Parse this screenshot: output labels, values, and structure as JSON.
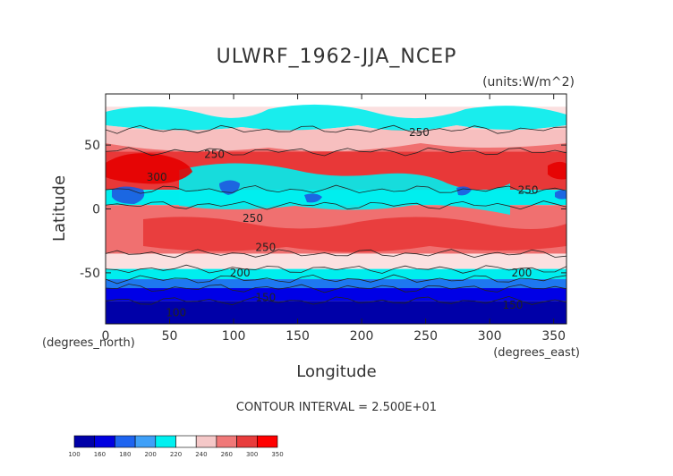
{
  "chart_data": {
    "type": "heatmap",
    "title": "ULWRF_1962-JJA_NCEP",
    "units": "(units:W/m^2)",
    "xlabel": "Longitude",
    "ylabel": "Latitude",
    "x_unit_note": "(degrees_east)",
    "y_unit_note": "(degrees_north)",
    "xlim": [
      0,
      360
    ],
    "ylim": [
      -90,
      90
    ],
    "xticks": [
      0,
      50,
      100,
      150,
      200,
      250,
      300,
      350
    ],
    "yticks": [
      50,
      0,
      -50
    ],
    "contour_interval_text": "CONTOUR INTERVAL = 2.500E+01",
    "contour_labels": [
      {
        "text": "250",
        "lon": 245,
        "lat": 57
      },
      {
        "text": "250",
        "lon": 85,
        "lat": 40
      },
      {
        "text": "300",
        "lon": 40,
        "lat": 22
      },
      {
        "text": "250",
        "lon": 330,
        "lat": 12
      },
      {
        "text": "250",
        "lon": 115,
        "lat": -10
      },
      {
        "text": "250",
        "lon": 125,
        "lat": -33
      },
      {
        "text": "200",
        "lon": 105,
        "lat": -53
      },
      {
        "text": "200",
        "lon": 325,
        "lat": -53
      },
      {
        "text": "150",
        "lon": 125,
        "lat": -72
      },
      {
        "text": "100",
        "lon": 55,
        "lat": -84
      },
      {
        "text": "150",
        "lon": 318,
        "lat": -78
      }
    ],
    "colorbar": {
      "ticks": [
        "100",
        "160",
        "180",
        "200",
        "220",
        "240",
        "260",
        "300",
        "350"
      ],
      "colors": [
        "#0000a8",
        "#0000e0",
        "#1e64f0",
        "#3fa0f8",
        "#00f0f0",
        "#ffffff",
        "#f5c8c8",
        "#f07878",
        "#e83c3c",
        "#ff0000"
      ]
    },
    "bands_by_latitude": [
      {
        "lat_from": 90,
        "lat_to": 80,
        "level": "240-260"
      },
      {
        "lat_from": 80,
        "lat_to": 62,
        "level": "220-240"
      },
      {
        "lat_from": 62,
        "lat_to": 45,
        "level": "260-300"
      },
      {
        "lat_from": 45,
        "lat_to": 15,
        "level": "300-350"
      },
      {
        "lat_from": 15,
        "lat_to": 3,
        "level": "200-220"
      },
      {
        "lat_from": 3,
        "lat_to": -35,
        "level": "260-300"
      },
      {
        "lat_from": -35,
        "lat_to": -47,
        "level": "220-240"
      },
      {
        "lat_from": -47,
        "lat_to": -55,
        "level": "200-220"
      },
      {
        "lat_from": -55,
        "lat_to": -62,
        "level": "180-200"
      },
      {
        "lat_from": -62,
        "lat_to": -72,
        "level": "160-180"
      },
      {
        "lat_from": -72,
        "lat_to": -90,
        "level": "100-160"
      }
    ]
  }
}
